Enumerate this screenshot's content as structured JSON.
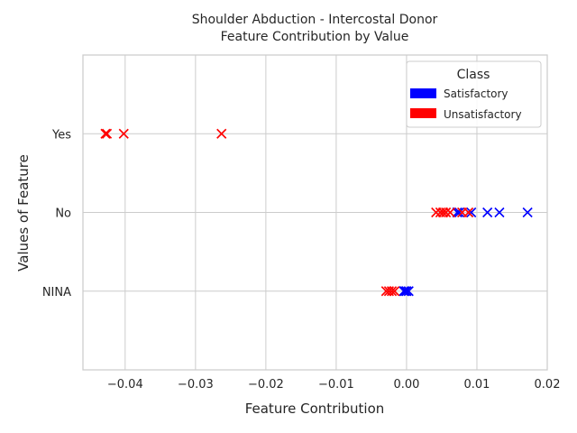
{
  "chart_data": {
    "type": "scatter",
    "title_line1": "Shoulder Abduction - Intercostal Donor",
    "title_line2": "Feature Contribution by Value",
    "xlabel": "Feature Contribution",
    "ylabel": "Values of Feature",
    "xlim": [
      -0.046,
      0.02
    ],
    "x_ticks": [
      -0.04,
      -0.03,
      -0.02,
      -0.01,
      0.0,
      0.01,
      0.02
    ],
    "x_tick_labels": [
      "−0.04",
      "−0.03",
      "−0.02",
      "−0.01",
      "0.00",
      "0.01",
      "0.02"
    ],
    "categories": [
      "NINA",
      "No",
      "Yes"
    ],
    "grid": true,
    "marker": "x",
    "legend": {
      "title": "Class",
      "placement": "top-right",
      "entries": [
        {
          "label": "Satisfactory",
          "color": "#0000ff"
        },
        {
          "label": "Unsatisfactory",
          "color": "#ff0000"
        }
      ]
    },
    "series": [
      {
        "name": "Satisfactory",
        "color": "#0000ff",
        "points": [
          {
            "x": 0.0072,
            "y": "No"
          },
          {
            "x": 0.0075,
            "y": "No"
          },
          {
            "x": 0.0092,
            "y": "No"
          },
          {
            "x": 0.0115,
            "y": "No"
          },
          {
            "x": 0.0132,
            "y": "No"
          },
          {
            "x": 0.0172,
            "y": "No"
          },
          {
            "x": -0.0004,
            "y": "NINA"
          },
          {
            "x": -0.0002,
            "y": "NINA"
          },
          {
            "x": 0.0,
            "y": "NINA"
          },
          {
            "x": 0.0003,
            "y": "NINA"
          }
        ]
      },
      {
        "name": "Unsatisfactory",
        "color": "#ff0000",
        "points": [
          {
            "x": -0.0428,
            "y": "Yes"
          },
          {
            "x": -0.0426,
            "y": "Yes"
          },
          {
            "x": -0.0402,
            "y": "Yes"
          },
          {
            "x": -0.0263,
            "y": "Yes"
          },
          {
            "x": 0.0042,
            "y": "No"
          },
          {
            "x": 0.0048,
            "y": "No"
          },
          {
            "x": 0.0052,
            "y": "No"
          },
          {
            "x": 0.0056,
            "y": "No"
          },
          {
            "x": 0.0062,
            "y": "No"
          },
          {
            "x": 0.0079,
            "y": "No"
          },
          {
            "x": 0.0088,
            "y": "No"
          },
          {
            "x": -0.0029,
            "y": "NINA"
          },
          {
            "x": -0.0025,
            "y": "NINA"
          },
          {
            "x": -0.0021,
            "y": "NINA"
          },
          {
            "x": -0.0017,
            "y": "NINA"
          }
        ]
      }
    ]
  }
}
